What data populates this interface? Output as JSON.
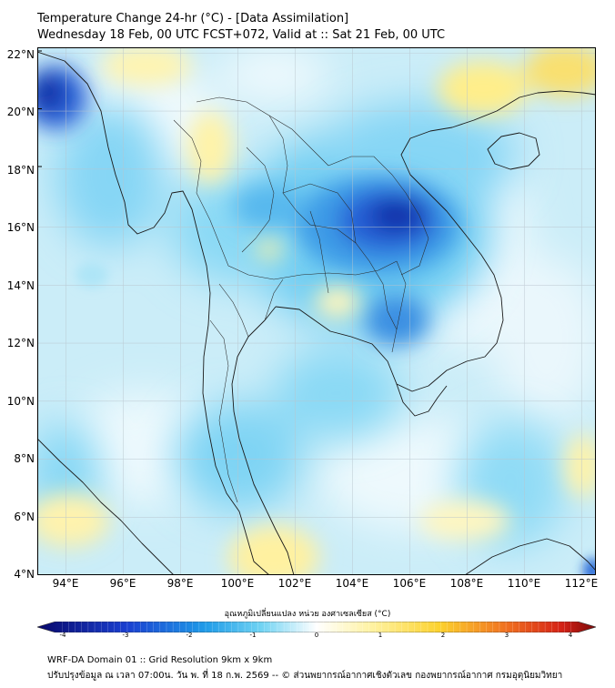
{
  "title": {
    "line1": "Temperature Change 24-hr (°C) - [Data Assimilation]",
    "line2": "Wednesday 18 Feb, 00 UTC FCST+072, Valid at :: Sat 21 Feb, 00 UTC"
  },
  "lat_labels": [
    "22°N",
    "20°N",
    "18°N",
    "16°N",
    "14°N",
    "12°N",
    "10°N",
    "8°N",
    "6°N",
    "4°N"
  ],
  "lon_labels": [
    "94°E",
    "96°E",
    "98°E",
    "100°E",
    "102°E",
    "104°E",
    "106°E",
    "108°E",
    "110°E",
    "112°E"
  ],
  "colorbar": {
    "title": "อุณหภูมิเปลี่ยนแปลง หน่วย องศาเซลเซียส (°C)",
    "ticks": [
      "-4",
      "-3",
      "-2",
      "-1",
      "0",
      "1",
      "2",
      "3",
      "4"
    ],
    "colors": {
      "min": "#08086b",
      "cold": "#1e5fe0",
      "cool": "#3cc8f0",
      "neutral": "#ffffff",
      "warm": "#ffd83a",
      "hot": "#e8321a",
      "max": "#7a0a0a"
    }
  },
  "footer": {
    "line1": "WRF-DA Domain 01 :: Grid Resolution 9km x 9km",
    "line2": "ปรับปรุงข้อมูล ณ เวลา 07:00น. วัน พ. ที่ 18 ก.พ. 2569 -- © ส่วนพยากรณ์อากาศเชิงตัวเลข กองพยากรณ์อากาศ กรมอุตุนิยมวิทยา"
  },
  "map": {
    "extent": {
      "lon": [
        93,
        112.5
      ],
      "lat": [
        4,
        22.2
      ]
    },
    "gridlines": true,
    "field_colors": {
      "background": "#c9ecf8",
      "light": "#e9f7fc",
      "cyan": "#7dd3f3",
      "blue": "#3fa6e8",
      "deep": "#1f4fd0",
      "core": "#0b2aa8",
      "yellow": "#fff3a6",
      "warm": "#f7df57"
    }
  }
}
